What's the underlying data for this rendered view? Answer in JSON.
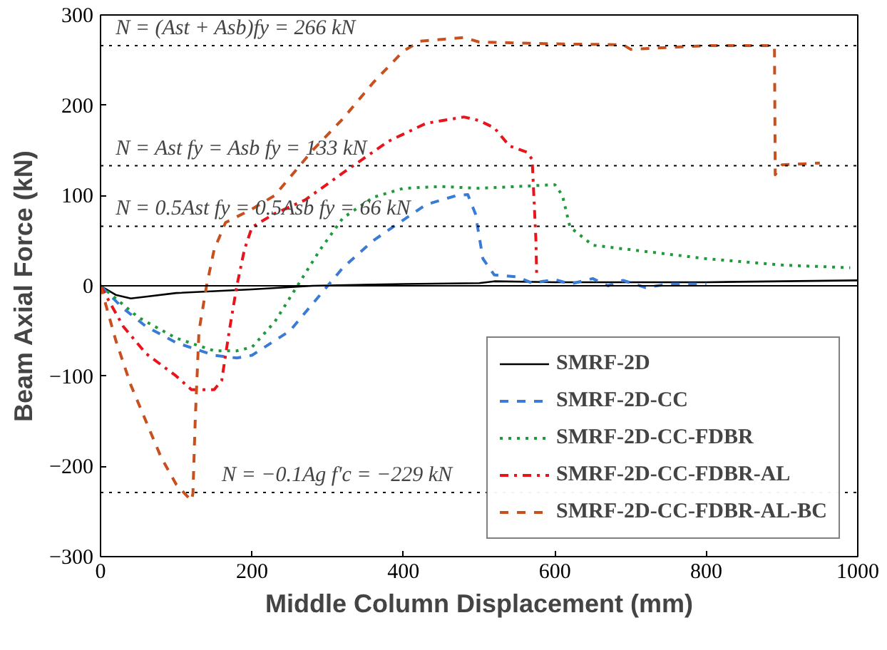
{
  "chart_data": {
    "type": "line",
    "xlabel": "Middle Column Displacement (mm)",
    "ylabel": "Beam Axial Force (kN)",
    "xlim": [
      0,
      1000
    ],
    "ylim": [
      -300,
      300
    ],
    "xticks": [
      0,
      200,
      400,
      600,
      800,
      1000
    ],
    "yticks": [
      -300,
      -200,
      -100,
      0,
      100,
      200,
      300
    ],
    "grid": false,
    "legend": "bottom right",
    "marker": "none",
    "series": [
      {
        "name": "SMRF-2D",
        "color": "#000000",
        "line_style": "solid",
        "x": [
          0,
          20,
          40,
          60,
          100,
          200,
          280,
          400,
          500,
          520,
          600,
          800,
          1000
        ],
        "values": [
          0,
          -10,
          -14,
          -12,
          -8,
          -4,
          0,
          2,
          3,
          5,
          4,
          4,
          6
        ]
      },
      {
        "name": "SMRF-2D-CC",
        "color": "#3a7bd5",
        "line_style": "dashed",
        "x": [
          0,
          30,
          60,
          100,
          150,
          180,
          200,
          250,
          290,
          320,
          360,
          400,
          430,
          470,
          485,
          495,
          505,
          520,
          550,
          570,
          600,
          620,
          650,
          670,
          690,
          720,
          750,
          800
        ],
        "values": [
          0,
          -25,
          -45,
          -63,
          -77,
          -80,
          -77,
          -50,
          -10,
          20,
          50,
          73,
          90,
          100,
          101,
          80,
          30,
          12,
          10,
          3,
          7,
          2,
          8,
          0,
          6,
          -2,
          2,
          2
        ]
      },
      {
        "name": "SMRF-2D-CC-FDBR",
        "color": "#1e9a3c",
        "line_style": "dotted",
        "x": [
          0,
          50,
          100,
          150,
          180,
          200,
          230,
          260,
          290,
          320,
          360,
          400,
          450,
          500,
          550,
          600,
          610,
          620,
          650,
          700,
          800,
          900,
          990
        ],
        "values": [
          0,
          -35,
          -58,
          -72,
          -72,
          -68,
          -40,
          0,
          40,
          75,
          98,
          108,
          110,
          108,
          110,
          112,
          100,
          65,
          45,
          40,
          30,
          23,
          20
        ]
      },
      {
        "name": "SMRF-2D-CC-FDBR-AL",
        "color": "#e8141c",
        "line_style": "dashdot",
        "x": [
          0,
          30,
          60,
          100,
          120,
          150,
          160,
          170,
          180,
          190,
          200,
          230,
          270,
          320,
          380,
          430,
          480,
          500,
          520,
          540,
          563,
          570,
          575,
          576
        ],
        "values": [
          0,
          -45,
          -75,
          -100,
          -115,
          -115,
          -105,
          -50,
          0,
          40,
          65,
          80,
          95,
          125,
          160,
          180,
          187,
          183,
          175,
          155,
          148,
          140,
          50,
          10
        ]
      },
      {
        "name": "SMRF-2D-CC-FDBR-AL-BC",
        "color": "#c8501e",
        "line_style": "dashed",
        "x": [
          0,
          20,
          40,
          60,
          80,
          100,
          120,
          122,
          125,
          130,
          140,
          150,
          165,
          200,
          230,
          250,
          280,
          320,
          360,
          400,
          422,
          480,
          500,
          600,
          690,
          700,
          800,
          890,
          891,
          900,
          950
        ],
        "values": [
          0,
          -60,
          -110,
          -150,
          -190,
          -220,
          -238,
          -230,
          -150,
          -50,
          0,
          40,
          70,
          85,
          100,
          120,
          150,
          185,
          225,
          260,
          271,
          275,
          270,
          268,
          267,
          262,
          266,
          266,
          123,
          134,
          136
        ]
      }
    ],
    "ref_lines": [
      {
        "axis": "y",
        "value": 266,
        "label": "N = (Ast + Asb)fy = 266 kN",
        "line_style": "dotted",
        "color": "#000000"
      },
      {
        "axis": "y",
        "value": 133,
        "label": "N = Ast fy = Asb fy = 133 kN",
        "line_style": "dotted",
        "color": "#000000"
      },
      {
        "axis": "y",
        "value": 66,
        "label": "N = 0.5Ast fy = 0.5Asb fy = 66 kN",
        "line_style": "dotted",
        "color": "#000000"
      },
      {
        "axis": "y",
        "value": 0,
        "label": null,
        "line_style": "solid",
        "color": "#000000"
      },
      {
        "axis": "y",
        "value": -229,
        "label": "N = −0.1Ag f'c = −229 kN",
        "line_style": "dotted",
        "color": "#000000"
      }
    ]
  }
}
